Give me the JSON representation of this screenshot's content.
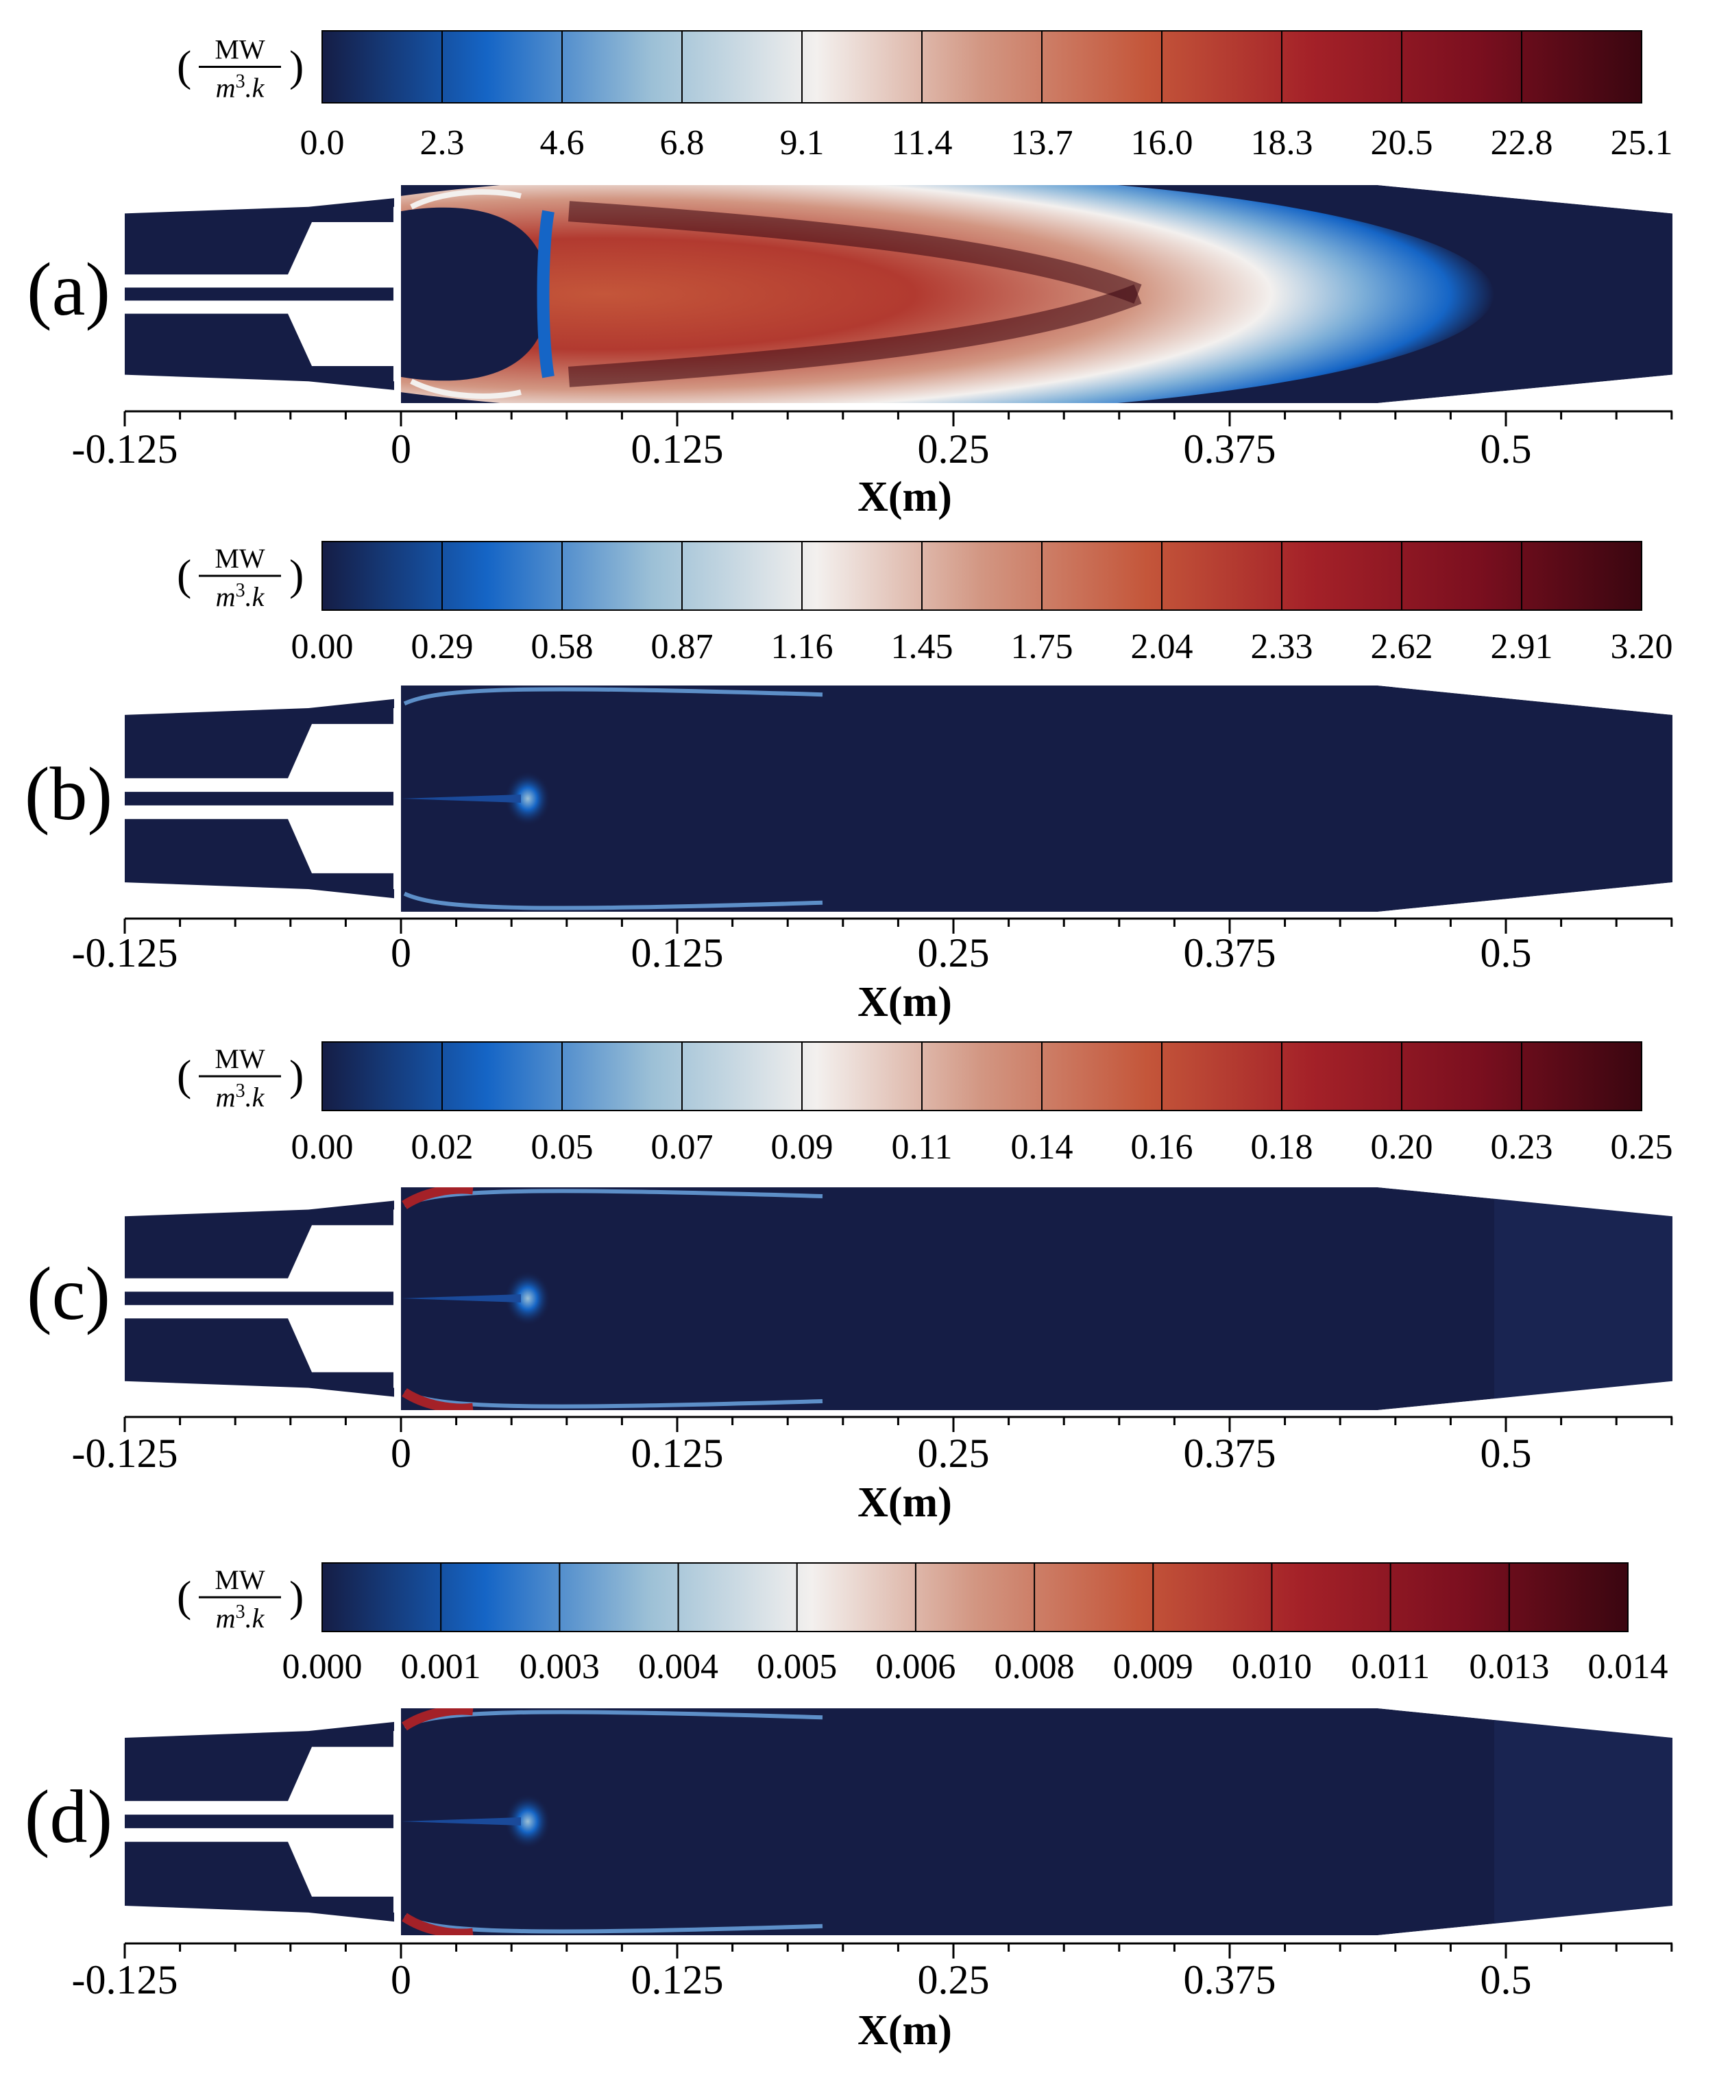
{
  "colors": {
    "background_field": "#151d45",
    "cmap": [
      "#151d45",
      "#1565c6",
      "#9cc0d6",
      "#f3f0ee",
      "#d29682",
      "#c4563a",
      "#a42128",
      "#7b0f1f",
      "#3a0610"
    ]
  },
  "unit_label": {
    "num": "MW",
    "den_m": "m",
    "den_exp": "3",
    "den_k": ".k"
  },
  "x_axis": {
    "label": "X(m)",
    "ticks": [
      "-0.125",
      "0",
      "0.125",
      "0.25",
      "0.375",
      "0.5"
    ]
  },
  "panels": [
    {
      "tag": "(a)",
      "colorbar_ticks": [
        "0.0",
        "2.3",
        "4.6",
        "6.8",
        "9.1",
        "11.4",
        "13.7",
        "16.0",
        "18.3",
        "20.5",
        "22.8",
        "25.1"
      ],
      "field": "flame"
    },
    {
      "tag": "(b)",
      "colorbar_ticks": [
        "0.00",
        "0.29",
        "0.58",
        "0.87",
        "1.16",
        "1.45",
        "1.75",
        "2.04",
        "2.33",
        "2.62",
        "2.91",
        "3.20"
      ],
      "field": "weak"
    },
    {
      "tag": "(c)",
      "colorbar_ticks": [
        "0.00",
        "0.02",
        "0.05",
        "0.07",
        "0.09",
        "0.11",
        "0.14",
        "0.16",
        "0.18",
        "0.20",
        "0.23",
        "0.25"
      ],
      "field": "corner"
    },
    {
      "tag": "(d)",
      "colorbar_ticks": [
        "0.000",
        "0.001",
        "0.003",
        "0.004",
        "0.005",
        "0.006",
        "0.008",
        "0.009",
        "0.010",
        "0.011",
        "0.013",
        "0.014"
      ],
      "field": "corner"
    }
  ]
}
